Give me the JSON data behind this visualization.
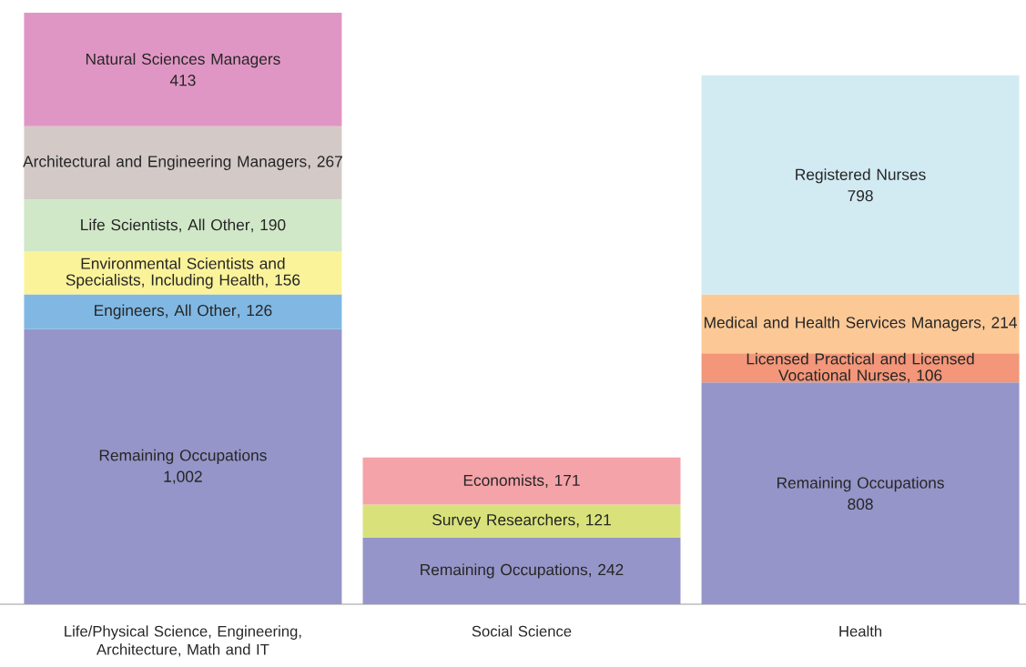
{
  "chart_data": {
    "type": "bar",
    "stacked": true,
    "categories": [
      "Life/Physical Science, Engineering, Architecture, Math and IT",
      "Social Science",
      "Health"
    ],
    "series": [
      {
        "name": "Remaining Occupations",
        "color": "#9595c9",
        "values": [
          1002,
          242,
          808
        ],
        "value_labels": [
          "1,002",
          ", 242",
          "808"
        ]
      },
      {
        "name": "Engineers, All Other",
        "color": "#80b8e3",
        "values": [
          126,
          null,
          null
        ],
        "value_labels": [
          ", 126",
          null,
          null
        ]
      },
      {
        "name": "Environmental Scientists and Specialists, Including Health",
        "color": "#fbf39a",
        "values": [
          156,
          null,
          null
        ],
        "value_labels": [
          ", 156",
          null,
          null
        ]
      },
      {
        "name": "Life Scientists, All Other",
        "color": "#d0e8c8",
        "values": [
          190,
          null,
          null
        ],
        "value_labels": [
          ", 190",
          null,
          null
        ]
      },
      {
        "name": "Architectural and Engineering Managers",
        "color": "#d3cac8",
        "values": [
          267,
          null,
          null
        ],
        "value_labels": [
          ", 267",
          null,
          null
        ]
      },
      {
        "name": "Natural Sciences Managers",
        "color": "#e096c4",
        "values": [
          413,
          null,
          null
        ],
        "value_labels": [
          "413",
          null,
          null
        ]
      },
      {
        "name": "Survey Researchers",
        "color": "#d9e27a",
        "values": [
          null,
          121,
          null
        ],
        "value_labels": [
          null,
          ", 121",
          null
        ]
      },
      {
        "name": "Economists",
        "color": "#f4a3a8",
        "values": [
          null,
          171,
          null
        ],
        "value_labels": [
          null,
          ", 171",
          null
        ]
      },
      {
        "name": "Licensed Practical and Licensed Vocational Nurses",
        "color": "#f39679",
        "values": [
          null,
          null,
          106
        ],
        "value_labels": [
          null,
          null,
          ", 106"
        ]
      },
      {
        "name": "Medical and Health Services Managers",
        "color": "#fcc996",
        "values": [
          null,
          null,
          214
        ],
        "value_labels": [
          null,
          null,
          ", 214"
        ]
      },
      {
        "name": "Registered Nurses",
        "color": "#d2ebf3",
        "values": [
          null,
          null,
          798
        ],
        "value_labels": [
          null,
          null,
          "798"
        ]
      }
    ]
  }
}
